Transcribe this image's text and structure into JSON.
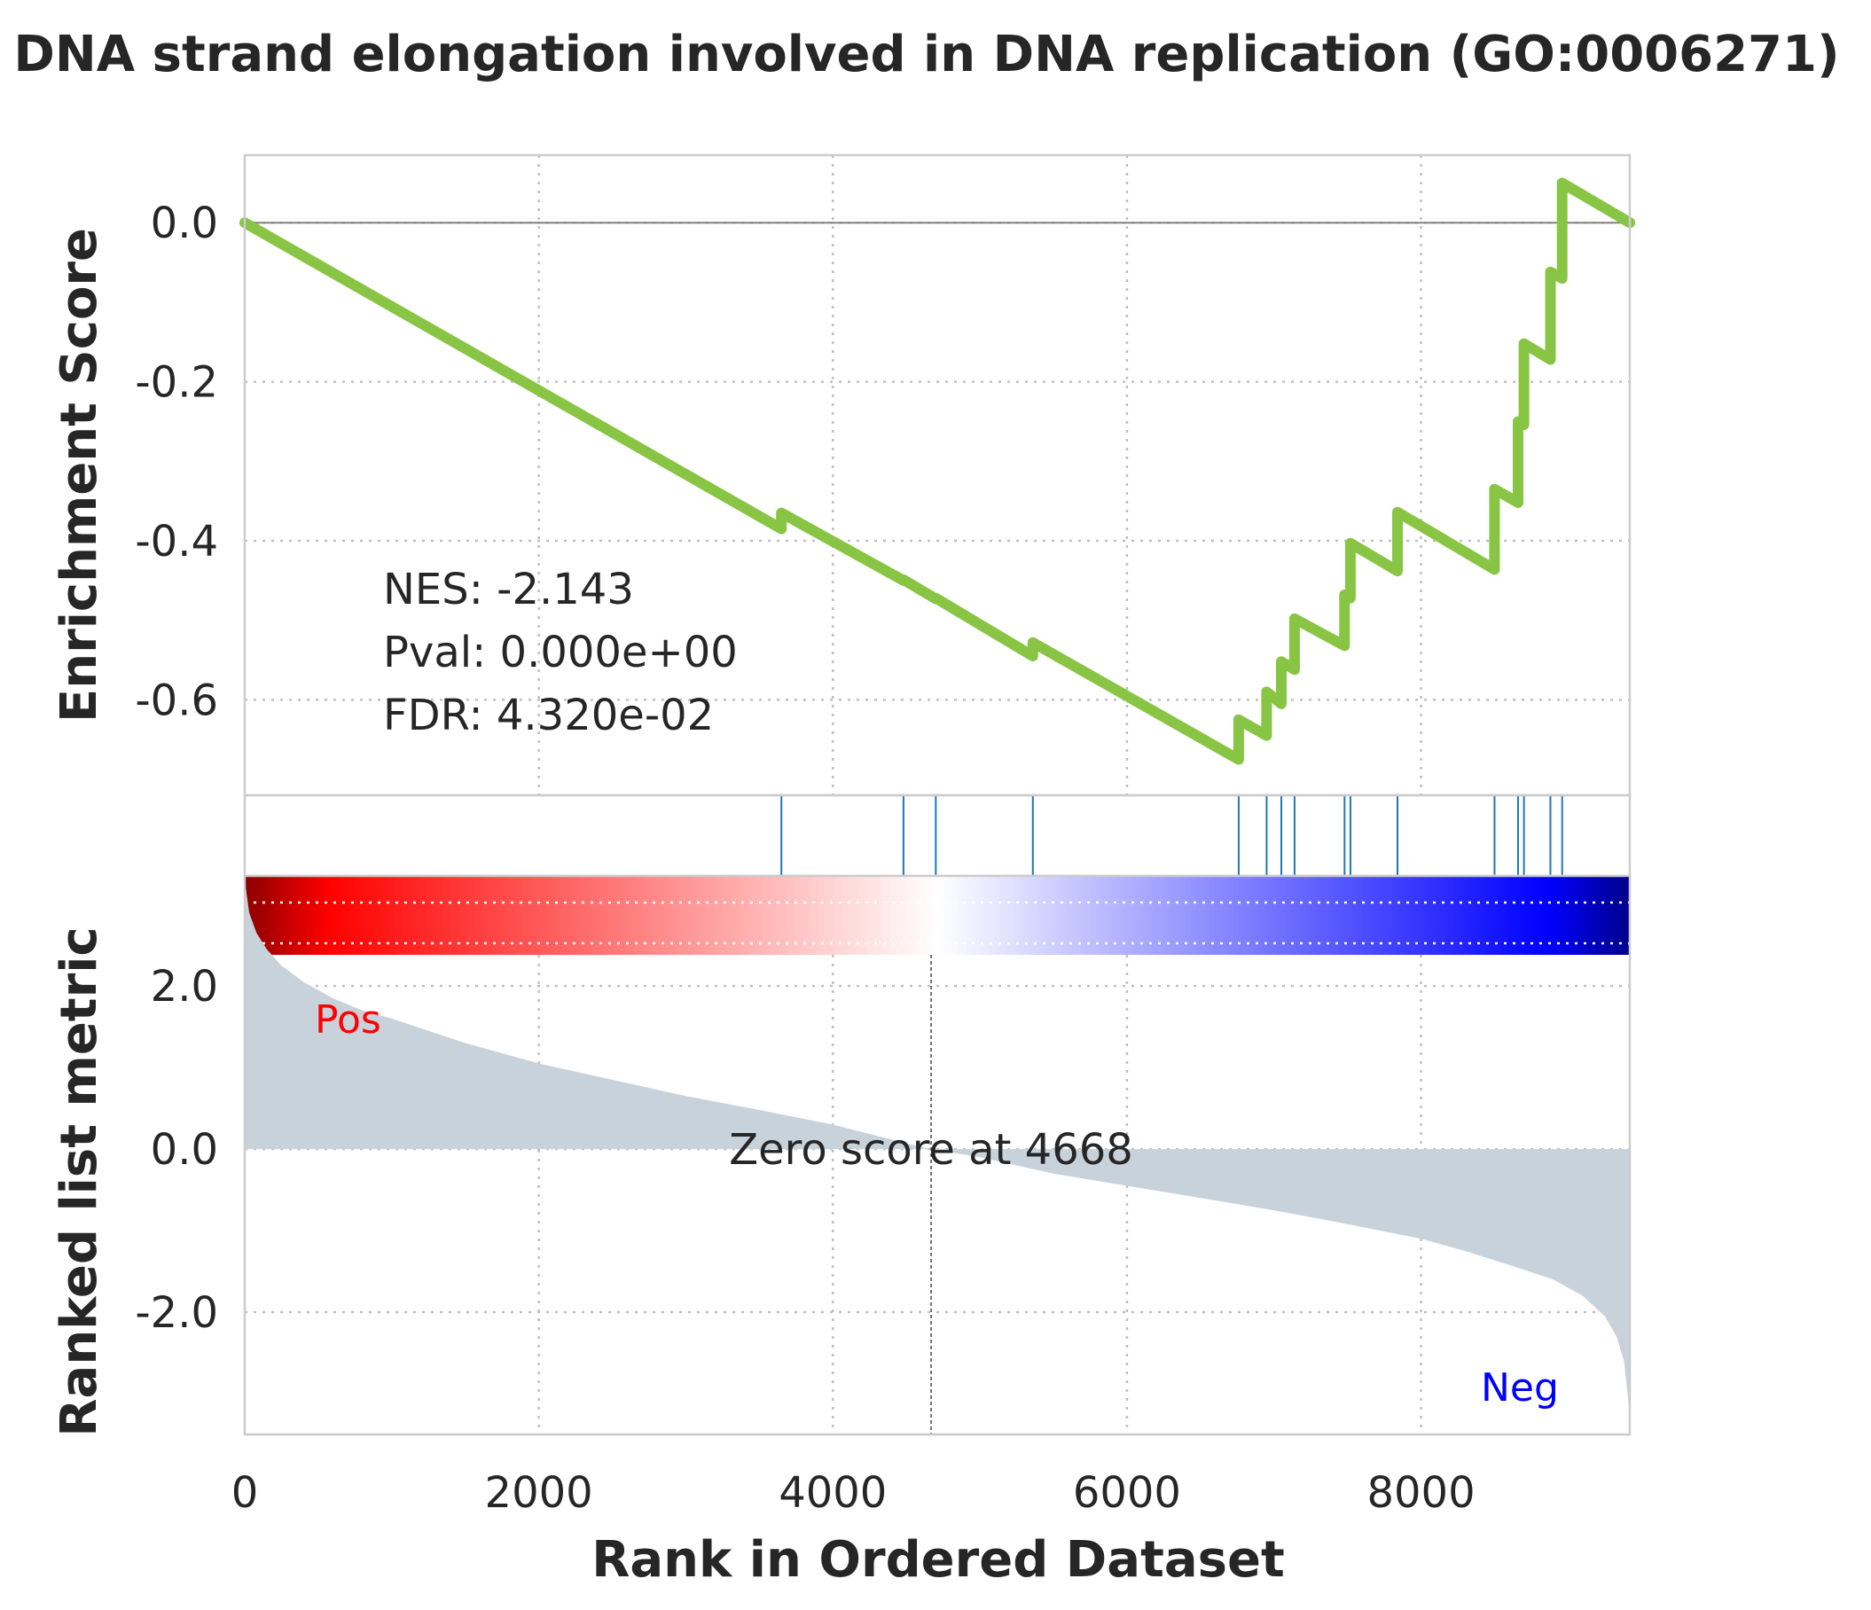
{
  "chart_data": {
    "type": "line",
    "title": "DNA strand elongation involved in DNA replication (GO:0006271)",
    "xlabel": "Rank in Ordered Dataset",
    "xlim": [
      0,
      9420
    ],
    "x_ticks": [
      0,
      2000,
      4000,
      6000,
      8000
    ],
    "x_tick_labels": [
      "0",
      "2000",
      "4000",
      "6000",
      "8000"
    ],
    "grid": true,
    "enrichment": {
      "ylabel": "Enrichment Score",
      "ylim": [
        -0.72,
        0.085
      ],
      "y_ticks": [
        0.0,
        -0.2,
        -0.4,
        -0.6
      ],
      "y_tick_labels": [
        "0.0",
        "-0.2",
        "-0.4",
        "-0.6"
      ],
      "line_color": "#88c544",
      "series": [
        {
          "x": [
            0,
            3650,
            3650,
            4480,
            4480,
            4700,
            4700,
            5360,
            5360,
            6760,
            6760,
            6950,
            6950,
            7050,
            7050,
            7140,
            7140,
            7480,
            7480,
            7520,
            7520,
            7840,
            7840,
            8500,
            8500,
            8660,
            8660,
            8700,
            8700,
            8880,
            8880,
            8960,
            8960,
            9420
          ],
          "y": [
            0.0,
            -0.385,
            -0.365,
            -0.45,
            -0.449,
            -0.473,
            -0.472,
            -0.545,
            -0.528,
            -0.675,
            -0.625,
            -0.645,
            -0.59,
            -0.605,
            -0.552,
            -0.562,
            -0.498,
            -0.532,
            -0.468,
            -0.472,
            -0.403,
            -0.438,
            -0.364,
            -0.436,
            -0.335,
            -0.352,
            -0.25,
            -0.254,
            -0.152,
            -0.172,
            -0.062,
            -0.07,
            0.05,
            0.0
          ]
        }
      ],
      "stats": [
        "NES: -2.143",
        "Pval: 0.000e+00",
        "FDR: 4.320e-02"
      ]
    },
    "hits": {
      "color": "#1f77b4",
      "positions": [
        3650,
        4480,
        4700,
        5360,
        6760,
        6950,
        7050,
        7140,
        7480,
        7520,
        7840,
        8500,
        8660,
        8700,
        8880,
        8960
      ]
    },
    "colorbar": {
      "colors": [
        "#8b0000",
        "#ff0000",
        "#ffffff",
        "#0000ff",
        "#00008b"
      ]
    },
    "ranked_metric": {
      "ylabel": "Ranked list metric",
      "ylim": [
        -3.5,
        3.35
      ],
      "y_ticks": [
        2.0,
        0.0,
        -2.0
      ],
      "y_tick_labels": [
        "2.0",
        "0.0",
        "-2.0"
      ],
      "fill_color": "#c8d2db",
      "x": [
        0,
        30,
        80,
        150,
        250,
        400,
        600,
        800,
        1000,
        1500,
        2000,
        2500,
        3000,
        3500,
        4000,
        4500,
        4668,
        5000,
        5500,
        6000,
        6500,
        7000,
        7500,
        8000,
        8300,
        8600,
        8900,
        9100,
        9250,
        9330,
        9380,
        9405,
        9420
      ],
      "values": [
        3.3,
        2.9,
        2.65,
        2.45,
        2.25,
        2.05,
        1.85,
        1.7,
        1.6,
        1.3,
        1.05,
        0.85,
        0.65,
        0.48,
        0.3,
        0.07,
        0.0,
        -0.1,
        -0.3,
        -0.45,
        -0.6,
        -0.75,
        -0.92,
        -1.1,
        -1.25,
        -1.42,
        -1.6,
        -1.8,
        -2.05,
        -2.3,
        -2.6,
        -3.0,
        -3.3
      ],
      "zero_cross": 4668,
      "zero_label": "Zero score at 4668",
      "pos_label": "Pos",
      "neg_label": "Neg",
      "pos_color": "#ff0000",
      "neg_color": "#0000ff"
    }
  }
}
